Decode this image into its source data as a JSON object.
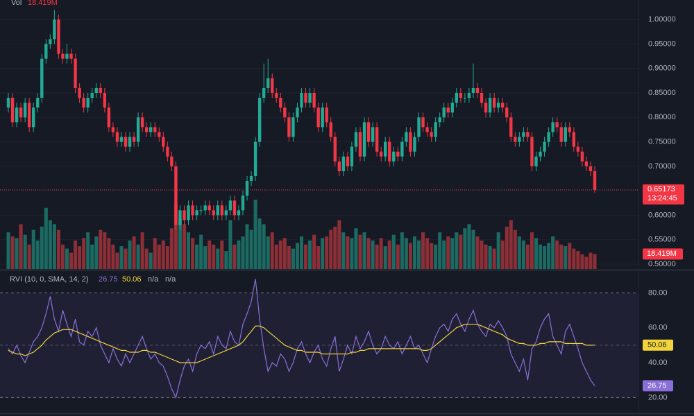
{
  "chart_data": [
    {
      "type": "candlestick",
      "volume_title": "Vol",
      "volume_label": "18.419M",
      "countdown": "13:24:45",
      "up_color": "#22ab94",
      "down_color": "#f23645",
      "volume_up_color": "#1c6b63",
      "volume_down_color": "#8e2f37",
      "open": [
        0.82,
        0.84,
        0.79,
        0.82,
        0.8,
        0.83,
        0.78,
        0.82,
        0.84,
        0.92,
        0.95,
        0.96,
        1.0,
        0.93,
        0.92,
        0.93,
        0.92,
        0.86,
        0.84,
        0.82,
        0.84,
        0.85,
        0.86,
        0.85,
        0.82,
        0.78,
        0.77,
        0.75,
        0.76,
        0.74,
        0.76,
        0.75,
        0.8,
        0.78,
        0.77,
        0.78,
        0.77,
        0.76,
        0.74,
        0.72,
        0.7,
        0.58,
        0.61,
        0.59,
        0.62,
        0.6,
        0.61,
        0.61,
        0.62,
        0.61,
        0.6,
        0.62,
        0.6,
        0.61,
        0.63,
        0.6,
        0.61,
        0.64,
        0.67,
        0.68,
        0.75,
        0.84,
        0.86,
        0.88,
        0.85,
        0.84,
        0.82,
        0.8,
        0.76,
        0.8,
        0.82,
        0.85,
        0.83,
        0.85,
        0.82,
        0.78,
        0.82,
        0.79,
        0.76,
        0.71,
        0.69,
        0.72,
        0.7,
        0.74,
        0.77,
        0.72,
        0.79,
        0.75,
        0.78,
        0.73,
        0.72,
        0.75,
        0.71,
        0.73,
        0.72,
        0.75,
        0.77,
        0.73,
        0.76,
        0.8,
        0.78,
        0.77,
        0.76,
        0.79,
        0.8,
        0.82,
        0.81,
        0.83,
        0.85,
        0.84,
        0.84,
        0.85,
        0.86,
        0.85,
        0.83,
        0.81,
        0.84,
        0.82,
        0.83,
        0.82,
        0.8,
        0.76,
        0.75,
        0.76,
        0.77,
        0.76,
        0.7,
        0.72,
        0.73,
        0.75,
        0.77,
        0.79,
        0.78,
        0.75,
        0.78,
        0.77,
        0.74,
        0.73,
        0.71,
        0.7,
        0.69
      ],
      "high": [
        0.85,
        0.85,
        0.83,
        0.83,
        0.84,
        0.84,
        0.83,
        0.85,
        0.93,
        0.96,
        0.97,
        1.02,
        1.01,
        0.94,
        0.95,
        0.94,
        0.93,
        0.87,
        0.85,
        0.85,
        0.86,
        0.87,
        0.87,
        0.86,
        0.83,
        0.79,
        0.78,
        0.77,
        0.77,
        0.77,
        0.77,
        0.81,
        0.81,
        0.79,
        0.79,
        0.79,
        0.78,
        0.77,
        0.75,
        0.73,
        0.71,
        0.62,
        0.62,
        0.63,
        0.63,
        0.62,
        0.62,
        0.63,
        0.63,
        0.62,
        0.63,
        0.63,
        0.62,
        0.64,
        0.64,
        0.62,
        0.65,
        0.68,
        0.69,
        0.76,
        0.85,
        0.91,
        0.92,
        0.89,
        0.86,
        0.85,
        0.83,
        0.81,
        0.81,
        0.83,
        0.86,
        0.86,
        0.86,
        0.86,
        0.83,
        0.83,
        0.83,
        0.8,
        0.77,
        0.72,
        0.73,
        0.73,
        0.75,
        0.78,
        0.78,
        0.8,
        0.8,
        0.79,
        0.79,
        0.74,
        0.76,
        0.76,
        0.74,
        0.74,
        0.76,
        0.78,
        0.78,
        0.77,
        0.81,
        0.81,
        0.79,
        0.78,
        0.8,
        0.81,
        0.83,
        0.83,
        0.84,
        0.86,
        0.86,
        0.85,
        0.86,
        0.91,
        0.87,
        0.86,
        0.84,
        0.85,
        0.85,
        0.84,
        0.84,
        0.83,
        0.81,
        0.77,
        0.77,
        0.78,
        0.78,
        0.77,
        0.73,
        0.74,
        0.76,
        0.78,
        0.8,
        0.8,
        0.79,
        0.79,
        0.79,
        0.78,
        0.75,
        0.74,
        0.72,
        0.71,
        0.7
      ],
      "low": [
        0.81,
        0.78,
        0.78,
        0.79,
        0.79,
        0.77,
        0.77,
        0.81,
        0.83,
        0.91,
        0.94,
        0.95,
        0.92,
        0.91,
        0.91,
        0.91,
        0.85,
        0.83,
        0.81,
        0.81,
        0.83,
        0.84,
        0.84,
        0.81,
        0.77,
        0.76,
        0.74,
        0.74,
        0.73,
        0.73,
        0.74,
        0.74,
        0.77,
        0.76,
        0.76,
        0.76,
        0.75,
        0.73,
        0.71,
        0.69,
        0.57,
        0.57,
        0.58,
        0.58,
        0.59,
        0.59,
        0.6,
        0.6,
        0.6,
        0.59,
        0.59,
        0.59,
        0.59,
        0.6,
        0.59,
        0.59,
        0.6,
        0.63,
        0.66,
        0.67,
        0.74,
        0.83,
        0.85,
        0.84,
        0.83,
        0.81,
        0.79,
        0.75,
        0.75,
        0.79,
        0.81,
        0.82,
        0.82,
        0.81,
        0.77,
        0.77,
        0.78,
        0.75,
        0.7,
        0.68,
        0.68,
        0.69,
        0.69,
        0.73,
        0.71,
        0.71,
        0.74,
        0.74,
        0.72,
        0.71,
        0.71,
        0.7,
        0.7,
        0.71,
        0.71,
        0.74,
        0.72,
        0.72,
        0.75,
        0.77,
        0.76,
        0.75,
        0.75,
        0.78,
        0.79,
        0.8,
        0.8,
        0.82,
        0.83,
        0.83,
        0.83,
        0.84,
        0.84,
        0.82,
        0.8,
        0.8,
        0.81,
        0.81,
        0.81,
        0.79,
        0.75,
        0.74,
        0.74,
        0.75,
        0.75,
        0.69,
        0.69,
        0.71,
        0.72,
        0.74,
        0.76,
        0.77,
        0.74,
        0.74,
        0.76,
        0.73,
        0.72,
        0.7,
        0.69,
        0.68,
        0.645
      ],
      "close": [
        0.84,
        0.79,
        0.82,
        0.8,
        0.83,
        0.78,
        0.82,
        0.84,
        0.92,
        0.95,
        0.96,
        1.0,
        0.93,
        0.92,
        0.93,
        0.92,
        0.86,
        0.84,
        0.82,
        0.84,
        0.85,
        0.86,
        0.85,
        0.82,
        0.78,
        0.77,
        0.75,
        0.76,
        0.74,
        0.76,
        0.75,
        0.8,
        0.78,
        0.77,
        0.78,
        0.77,
        0.76,
        0.74,
        0.72,
        0.7,
        0.58,
        0.61,
        0.59,
        0.62,
        0.6,
        0.61,
        0.61,
        0.62,
        0.61,
        0.6,
        0.62,
        0.6,
        0.61,
        0.63,
        0.6,
        0.61,
        0.64,
        0.67,
        0.68,
        0.75,
        0.84,
        0.86,
        0.88,
        0.85,
        0.84,
        0.82,
        0.8,
        0.76,
        0.8,
        0.82,
        0.85,
        0.83,
        0.85,
        0.82,
        0.78,
        0.82,
        0.79,
        0.76,
        0.71,
        0.69,
        0.72,
        0.7,
        0.74,
        0.77,
        0.72,
        0.79,
        0.75,
        0.78,
        0.73,
        0.72,
        0.75,
        0.71,
        0.73,
        0.72,
        0.75,
        0.77,
        0.73,
        0.76,
        0.8,
        0.78,
        0.77,
        0.76,
        0.79,
        0.8,
        0.82,
        0.81,
        0.83,
        0.85,
        0.84,
        0.84,
        0.85,
        0.86,
        0.85,
        0.83,
        0.81,
        0.84,
        0.82,
        0.83,
        0.82,
        0.8,
        0.76,
        0.75,
        0.76,
        0.77,
        0.76,
        0.7,
        0.72,
        0.73,
        0.75,
        0.77,
        0.79,
        0.78,
        0.75,
        0.78,
        0.77,
        0.74,
        0.73,
        0.71,
        0.7,
        0.69,
        0.65173
      ],
      "volume": [
        45,
        40,
        38,
        55,
        42,
        30,
        48,
        35,
        52,
        75,
        60,
        55,
        48,
        30,
        25,
        20,
        35,
        28,
        38,
        45,
        30,
        40,
        48,
        45,
        38,
        30,
        20,
        28,
        25,
        35,
        40,
        30,
        45,
        25,
        20,
        38,
        30,
        35,
        28,
        50,
        80,
        62,
        55,
        45,
        38,
        30,
        42,
        28,
        35,
        30,
        25,
        35,
        22,
        60,
        30,
        35,
        40,
        55,
        48,
        85,
        62,
        55,
        40,
        45,
        30,
        35,
        38,
        28,
        25,
        32,
        40,
        30,
        35,
        42,
        28,
        38,
        40,
        48,
        52,
        60,
        45,
        40,
        38,
        50,
        42,
        45,
        38,
        35,
        30,
        38,
        28,
        35,
        42,
        30,
        45,
        38,
        32,
        40,
        35,
        45,
        38,
        32,
        30,
        45,
        35,
        40,
        38,
        45,
        42,
        50,
        55,
        48,
        40,
        35,
        30,
        28,
        25,
        45,
        35,
        52,
        60,
        48,
        40,
        35,
        30,
        45,
        38,
        30,
        28,
        32,
        40,
        35,
        30,
        28,
        32,
        25,
        22,
        18,
        15,
        20,
        18.419
      ],
      "ylim": [
        0.49,
        1.04
      ],
      "volume_ylim": [
        0,
        330
      ],
      "yticks": [
        {
          "value": 1.0,
          "label": "1.00000"
        },
        {
          "value": 0.95,
          "label": "0.95000"
        },
        {
          "value": 0.9,
          "label": "0.90000"
        },
        {
          "value": 0.85,
          "label": "0.85000"
        },
        {
          "value": 0.8,
          "label": "0.80000"
        },
        {
          "value": 0.75,
          "label": "0.75000"
        },
        {
          "value": 0.7,
          "label": "0.70000"
        },
        {
          "value": 0.65,
          "label": "0.65000"
        },
        {
          "value": 0.6,
          "label": "0.60000"
        },
        {
          "value": 0.55,
          "label": "0.55000"
        },
        {
          "value": 0.5,
          "label": "0.50000"
        }
      ],
      "grid": true
    },
    {
      "type": "line",
      "title": "RVI (10, 0, SMA, 14, 2)",
      "header_na": [
        "n/a",
        "n/a"
      ],
      "series": [
        {
          "color": "#8a6fd8",
          "values": [
            48,
            45,
            50,
            44,
            40,
            46,
            52,
            55,
            60,
            68,
            78,
            65,
            58,
            70,
            62,
            55,
            65,
            52,
            50,
            58,
            55,
            60,
            50,
            45,
            40,
            48,
            42,
            38,
            45,
            40,
            45,
            50,
            55,
            48,
            42,
            45,
            40,
            38,
            32,
            25,
            20,
            30,
            38,
            42,
            35,
            45,
            50,
            48,
            52,
            45,
            55,
            50,
            48,
            58,
            52,
            50,
            62,
            68,
            75,
            88,
            65,
            48,
            35,
            40,
            38,
            45,
            42,
            35,
            40,
            48,
            52,
            45,
            40,
            46,
            50,
            42,
            38,
            48,
            55,
            35,
            42,
            50,
            45,
            55,
            48,
            52,
            58,
            50,
            45,
            48,
            55,
            50,
            48,
            52,
            45,
            50,
            55,
            48,
            50,
            45,
            40,
            48,
            55,
            60,
            62,
            58,
            65,
            68,
            62,
            58,
            65,
            70,
            62,
            58,
            55,
            62,
            60,
            64,
            60,
            55,
            45,
            40,
            35,
            42,
            30,
            48,
            52,
            60,
            65,
            68,
            55,
            50,
            45,
            58,
            62,
            55,
            48,
            40,
            35,
            30,
            26.75
          ]
        },
        {
          "color": "#f2d43a",
          "values": [
            47,
            46,
            45,
            45,
            44,
            45,
            46,
            48,
            50,
            53,
            55,
            57,
            58,
            59,
            59,
            59,
            58,
            57,
            56,
            55,
            54,
            53,
            52,
            51,
            50,
            49,
            48,
            47,
            47,
            46,
            46,
            46,
            47,
            47,
            46,
            46,
            45,
            44,
            43,
            42,
            41,
            40,
            40,
            40,
            40,
            40,
            41,
            42,
            43,
            44,
            45,
            46,
            47,
            48,
            49,
            50,
            52,
            55,
            58,
            61,
            61,
            60,
            58,
            56,
            54,
            52,
            50,
            49,
            48,
            47,
            47,
            46,
            46,
            46,
            46,
            45,
            45,
            45,
            45,
            45,
            45,
            45,
            46,
            46,
            47,
            47,
            48,
            48,
            48,
            48,
            48,
            48,
            48,
            48,
            48,
            48,
            48,
            48,
            48,
            47,
            47,
            48,
            50,
            52,
            54,
            56,
            58,
            60,
            61,
            62,
            62,
            62,
            62,
            61,
            60,
            59,
            58,
            57,
            56,
            54,
            53,
            52,
            51,
            51,
            50,
            50,
            50,
            51,
            51,
            52,
            52,
            52,
            52,
            51,
            51,
            51,
            51,
            51,
            50,
            50,
            50.06
          ]
        }
      ],
      "ylim": [
        11,
        92.5
      ],
      "yticks": [
        {
          "value": 80,
          "label": "80.00"
        },
        {
          "value": 60,
          "label": "60.00"
        },
        {
          "value": 40,
          "label": "40.00"
        },
        {
          "value": 20,
          "label": "20.00"
        }
      ],
      "band": [
        20,
        80
      ],
      "midline": 50
    }
  ]
}
